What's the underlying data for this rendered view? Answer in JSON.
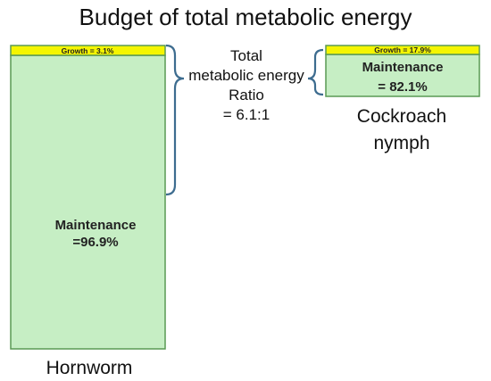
{
  "title": "Budget of total metabolic energy",
  "hornworm": {
    "name": "Hornworm",
    "growth_label": "Growth = 3.1%",
    "growth_pct": 3.1,
    "maintenance_line1": "Maintenance",
    "maintenance_line2": "=96.9%",
    "maintenance_pct": 96.9
  },
  "cockroach": {
    "name_line1": "Cockroach",
    "name_line2": "nymph",
    "growth_label": "Growth = 17.9%",
    "growth_pct": 17.9,
    "maintenance_line1": "Maintenance",
    "maintenance_line2": "= 82.1%",
    "maintenance_pct": 82.1
  },
  "ratio": {
    "line1": "Total",
    "line2": "metabolic energy",
    "line3": "Ratio",
    "line4": "= 6.1:1",
    "value": 6.1
  },
  "colors": {
    "maintenance_fill": "#c6eec4",
    "growth_fill": "#f5f500",
    "box_border": "#5a9a55",
    "brace": "#3d6c8f"
  }
}
